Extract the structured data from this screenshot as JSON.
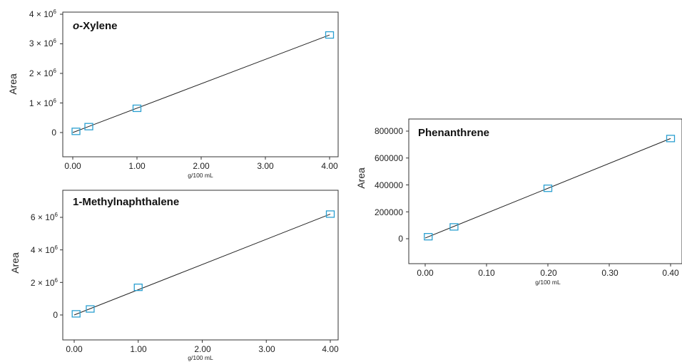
{
  "chart_data": [
    {
      "type": "scatter",
      "title": "o-Xylene",
      "title_prefix": "o",
      "title_rest": "-Xylene",
      "xlabel": "g/100 mL",
      "ylabel": "Area",
      "xlim": [
        -0.1,
        4.1
      ],
      "ylim": [
        -0.75,
        4.0
      ],
      "xticks": [
        "0.00",
        "1.00",
        "2.00",
        "3.00",
        "4.00"
      ],
      "yticks": [
        "0",
        "1 × 10",
        "2 × 10",
        "3 × 10",
        "4 × 10"
      ],
      "ytick_exponent": "6",
      "points": [
        {
          "x": 0.05,
          "y": 0.04
        },
        {
          "x": 0.25,
          "y": 0.2
        },
        {
          "x": 1.0,
          "y": 0.82
        },
        {
          "x": 4.0,
          "y": 3.3
        }
      ],
      "y_scale_note": "values in units of 10^6",
      "fit": {
        "x": [
          0.0,
          4.0
        ],
        "y": [
          0.0,
          3.3
        ]
      },
      "marker_color": "#2a9fd0",
      "line_color": "#222222"
    },
    {
      "type": "scatter",
      "title": "1-Methylnaphthalene",
      "xlabel": "g/100 mL",
      "ylabel": "Area",
      "xlim": [
        -0.1,
        4.1
      ],
      "ylim": [
        -0.8,
        7.6
      ],
      "xticks": [
        "0.00",
        "1.00",
        "2.00",
        "3.00",
        "4.00"
      ],
      "yticks": [
        "0",
        "2 × 10",
        "4 × 10",
        "6 × 10"
      ],
      "ytick_exponent": "6",
      "points": [
        {
          "x": 0.03,
          "y": 0.07
        },
        {
          "x": 0.25,
          "y": 0.37
        },
        {
          "x": 1.0,
          "y": 1.7
        },
        {
          "x": 4.0,
          "y": 6.2
        }
      ],
      "fit": {
        "x": [
          0.0,
          4.0
        ],
        "y": [
          0.0,
          6.2
        ]
      },
      "marker_color": "#2a9fd0",
      "line_color": "#222222"
    },
    {
      "type": "scatter",
      "title": "Phenanthrene",
      "xlabel": "g/100 mL",
      "ylabel": "Area",
      "xlim": [
        -0.02,
        0.4
      ],
      "ylim": [
        -100000,
        880000
      ],
      "xticks": [
        "0.00",
        "0.10",
        "0.20",
        "0.30",
        "0.40"
      ],
      "yticks": [
        "0",
        "200000",
        "400000",
        "600000",
        "800000"
      ],
      "points": [
        {
          "x": 0.005,
          "y": 15000
        },
        {
          "x": 0.047,
          "y": 88000
        },
        {
          "x": 0.2,
          "y": 375000
        },
        {
          "x": 0.4,
          "y": 745000
        }
      ],
      "fit": {
        "x": [
          0.0,
          0.4
        ],
        "y": [
          5000,
          745000
        ]
      },
      "marker_color": "#2a9fd0",
      "line_color": "#222222"
    }
  ]
}
